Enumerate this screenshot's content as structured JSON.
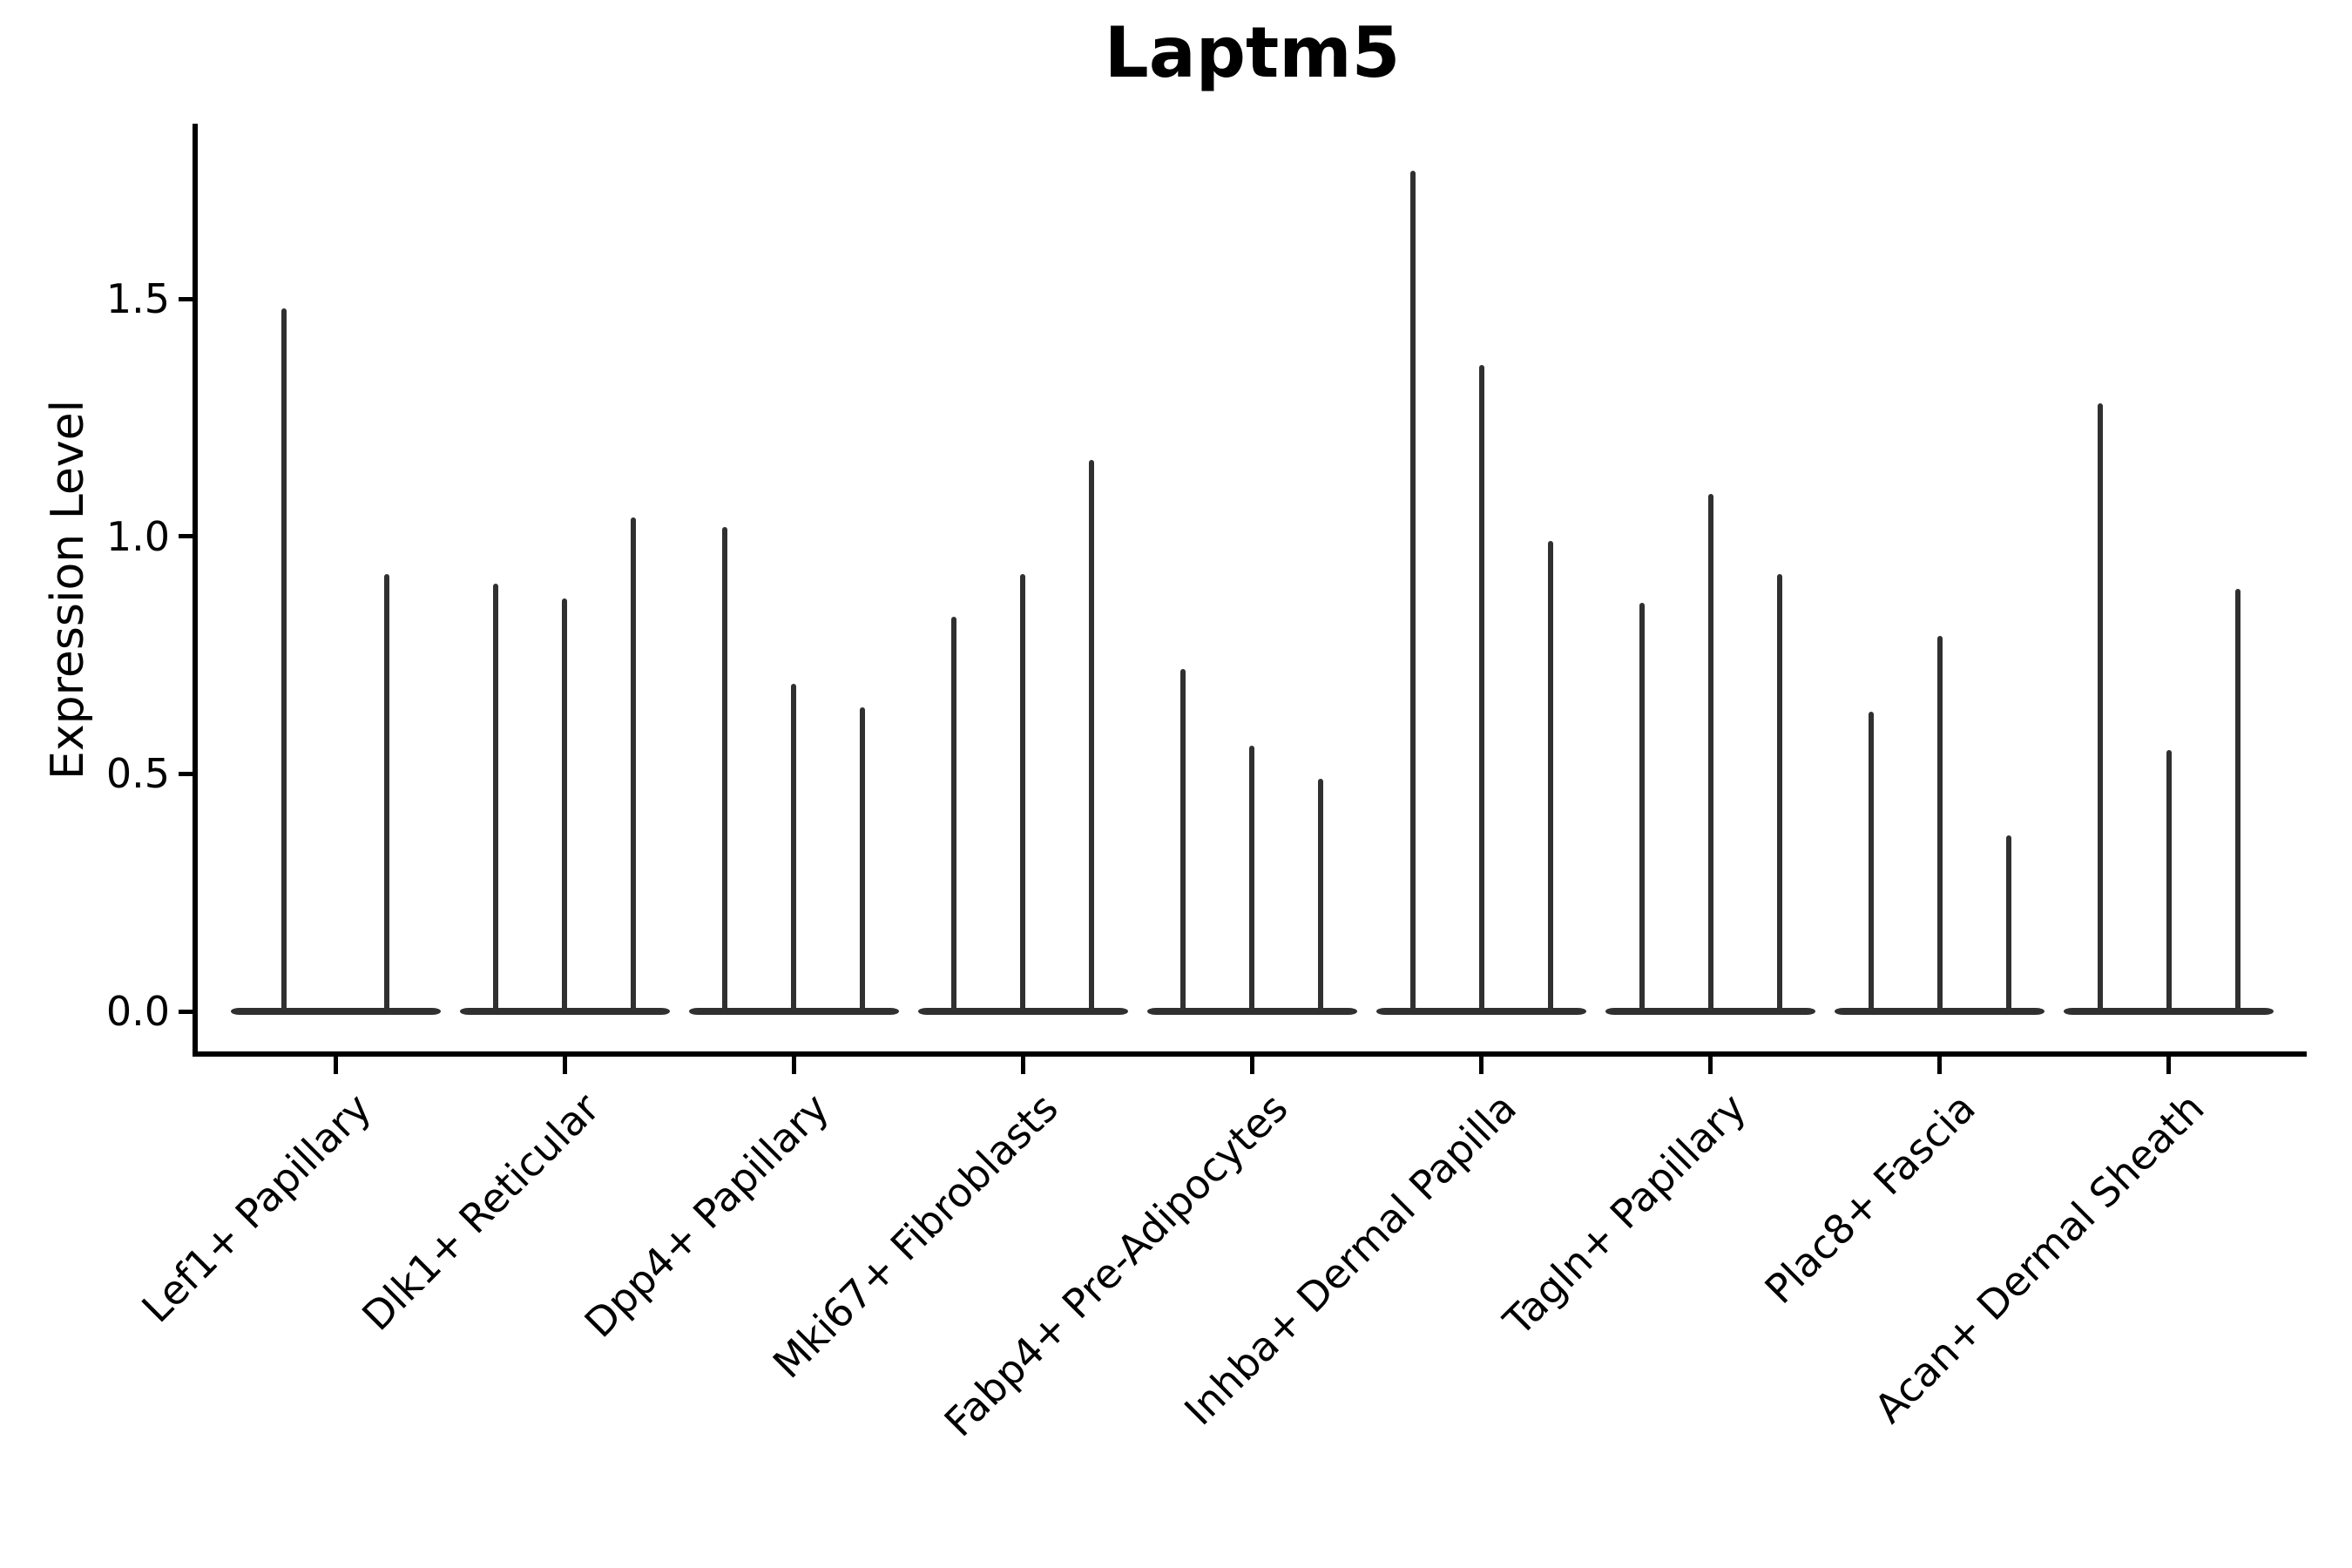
{
  "chart_data": {
    "type": "violin",
    "title": "Laptm5",
    "ylabel": "Expression Level",
    "yticks": [
      {
        "label": "0.0",
        "value": 0.0
      },
      {
        "label": "0.5",
        "value": 0.5
      },
      {
        "label": "1.0",
        "value": 1.0
      },
      {
        "label": "1.5",
        "value": 1.5
      }
    ],
    "ylim": [
      -0.089,
      1.869
    ],
    "grid": false,
    "legend": "none",
    "axis_color": "#000000",
    "line_color": "#303030",
    "categories": [
      "Lef1+ Papillary",
      "Dlk1+ Reticular",
      "Dpp4+ Papillary",
      "Mki67+ Fibroblasts",
      "Fabp4+ Pre-Adipocytes",
      "Inhba+ Dermal Papilla",
      "Tagln+ Papillary",
      "Plac8+ Fascia",
      "Acan+ Dermal Sheath"
    ],
    "violin_max": [
      [
        1.48,
        0.92
      ],
      [
        0.9,
        0.87,
        1.04
      ],
      [
        1.02,
        0.69,
        0.64
      ],
      [
        0.83,
        0.92,
        1.16
      ],
      [
        0.72,
        0.56,
        0.49
      ],
      [
        1.77,
        1.36,
        0.99
      ],
      [
        0.86,
        1.09,
        0.92
      ],
      [
        0.63,
        0.79,
        0.37
      ],
      [
        1.28,
        0.55,
        0.89
      ]
    ]
  }
}
